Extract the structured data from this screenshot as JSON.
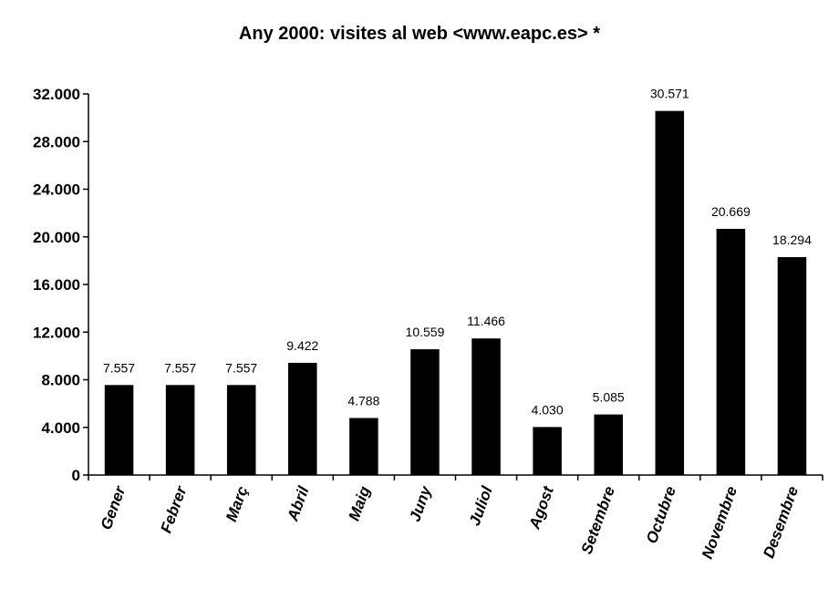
{
  "chart_data": {
    "type": "bar",
    "title": "Any 2000: visites al web <www.eapc.es> *",
    "xlabel": "",
    "ylabel": "",
    "categories": [
      "Gener",
      "Febrer",
      "Març",
      "Abril",
      "Maig",
      "Juny",
      "Juliol",
      "Agost",
      "Setembre",
      "Octubre",
      "Novembre",
      "Desembre"
    ],
    "values": [
      7557,
      7557,
      7557,
      9422,
      4788,
      10559,
      11466,
      4030,
      5085,
      30571,
      20669,
      18294
    ],
    "data_labels": [
      "7.557",
      "7.557",
      "7.557",
      "9.422",
      "4.788",
      "10.559",
      "11.466",
      "4.030",
      "5.085",
      "30.571",
      "20.669",
      "18.294"
    ],
    "ylim": [
      0,
      32000
    ],
    "yticks": [
      0,
      4000,
      8000,
      12000,
      16000,
      20000,
      24000,
      28000,
      32000
    ],
    "ytick_labels": [
      "0",
      "4.000",
      "8.000",
      "12.000",
      "16.000",
      "20.000",
      "24.000",
      "28.000",
      "32.000"
    ],
    "grid": false,
    "legend": "none",
    "bar_color": "#000000"
  }
}
